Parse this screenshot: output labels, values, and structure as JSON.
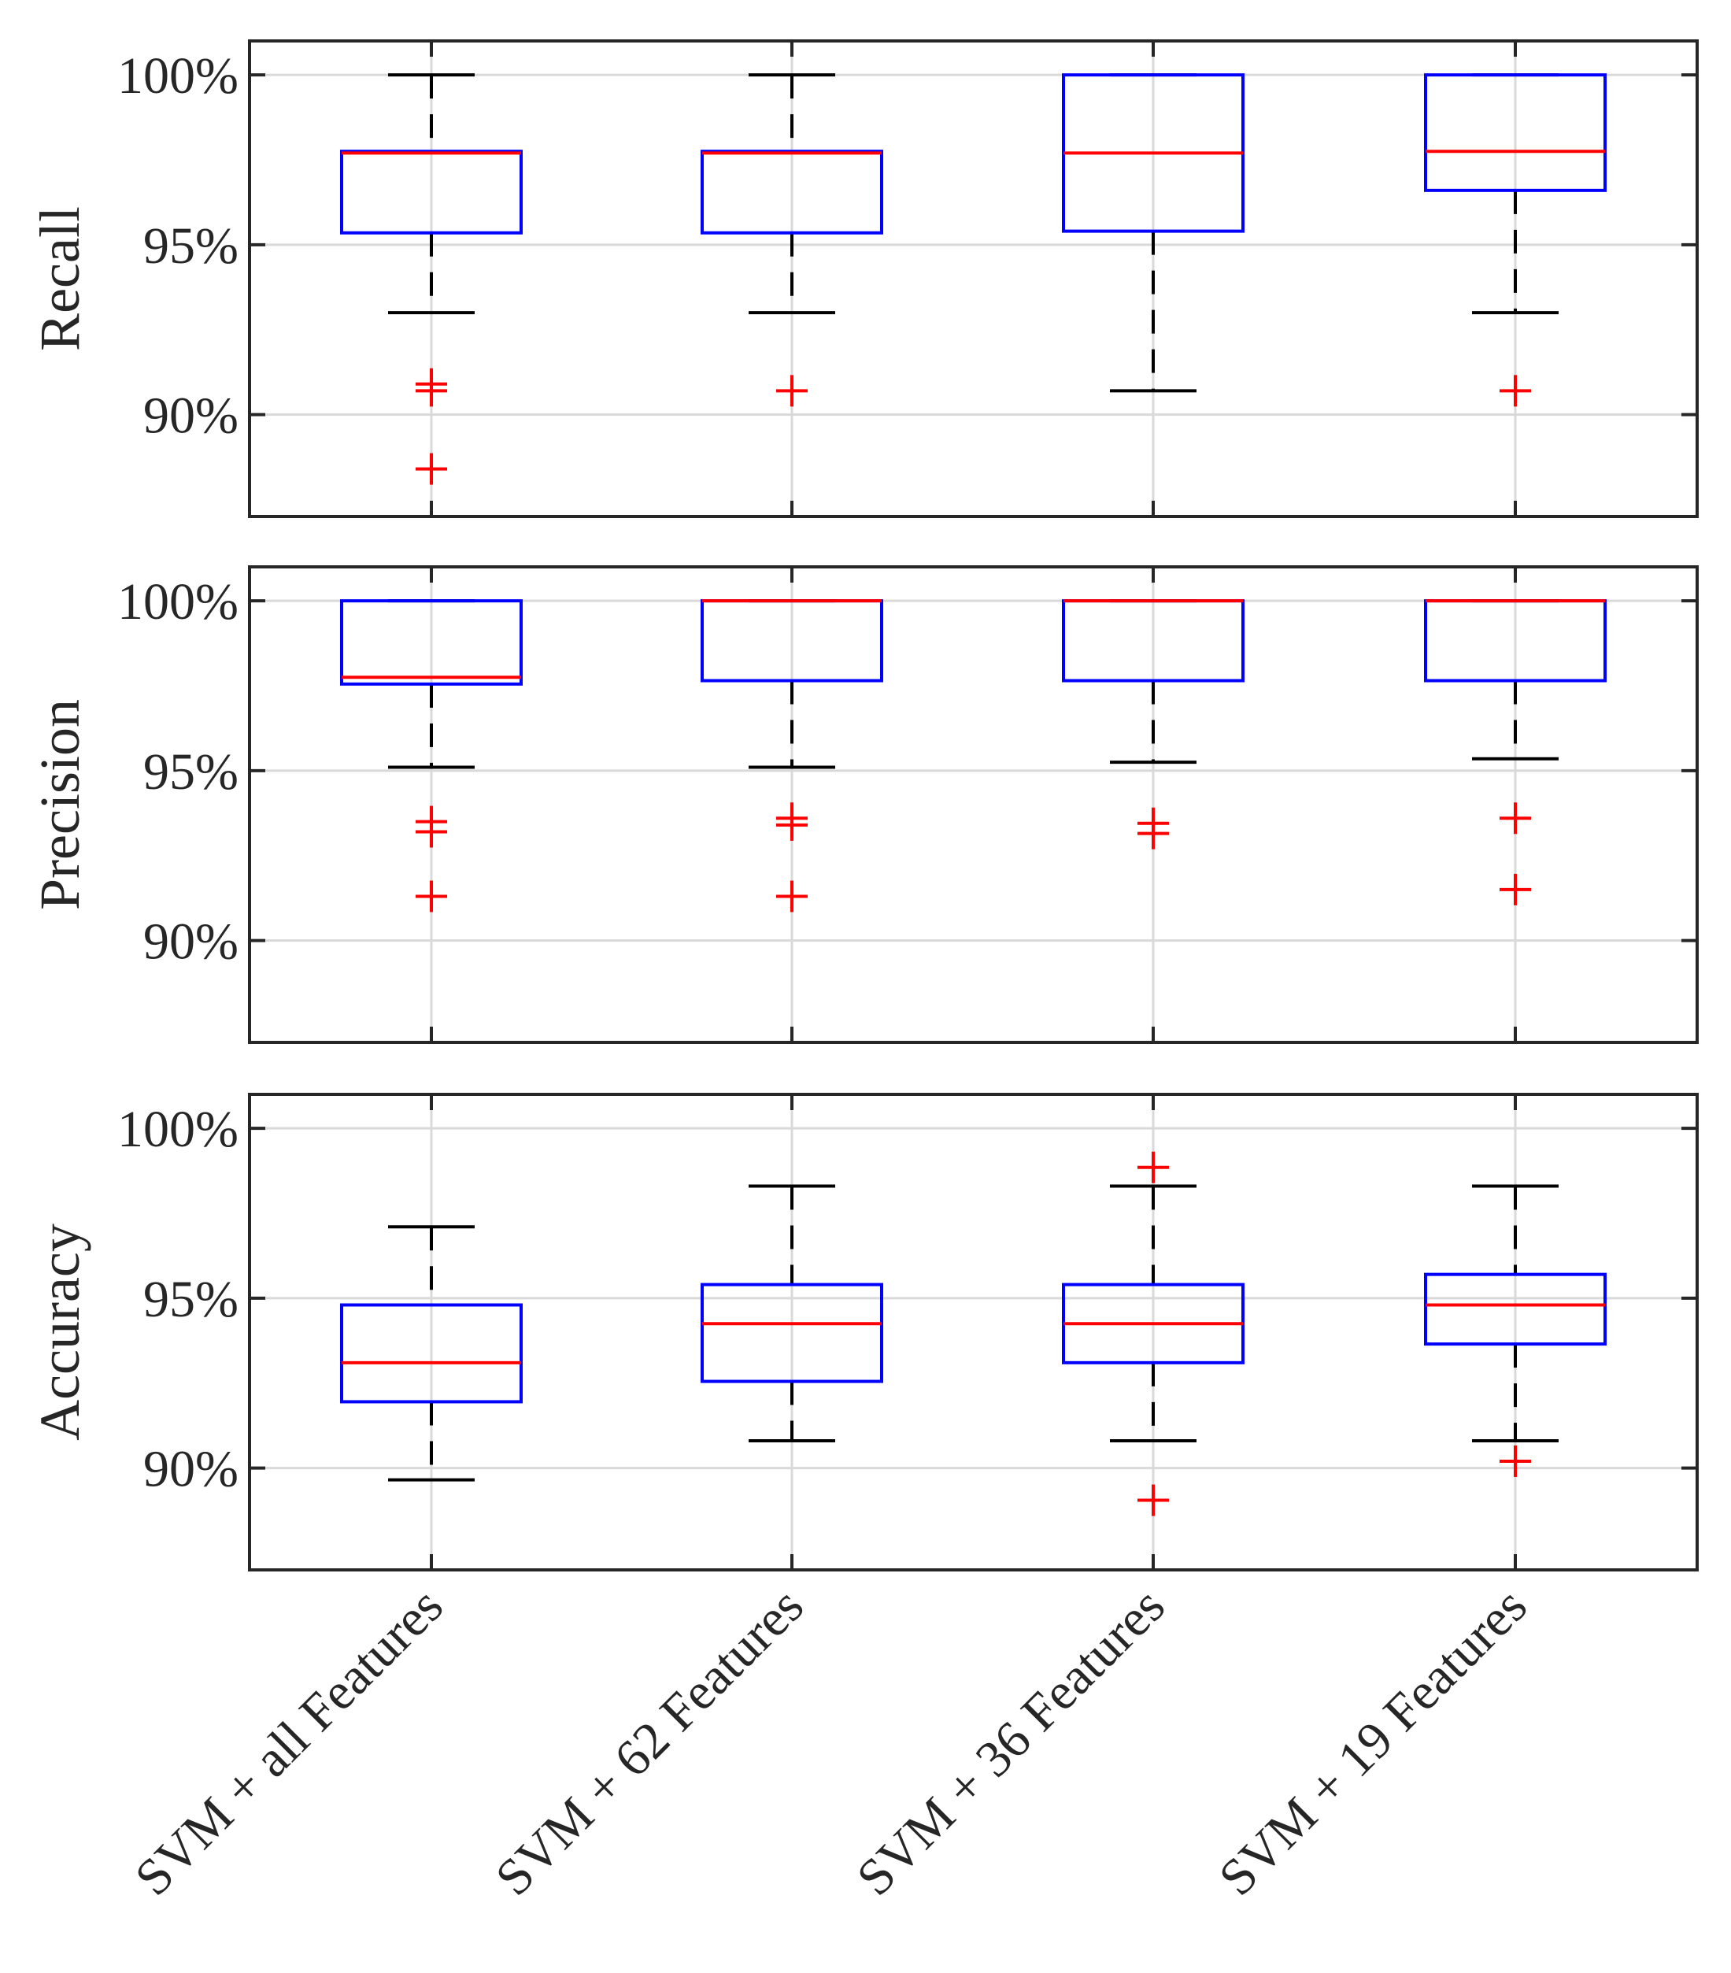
{
  "chart_data": {
    "type": "boxplot",
    "categories": [
      "SVM + all Features",
      "SVM + 62 Features",
      "SVM + 36 Features",
      "SVM + 19 Features"
    ],
    "ylim": [
      87,
      101
    ],
    "yticks": [
      90,
      95,
      100
    ],
    "ytick_labels": [
      "90%",
      "95%",
      "100%"
    ],
    "grid": true,
    "panels": [
      {
        "ylabel": "Recall",
        "boxes": [
          {
            "whisker_low": 93.0,
            "q1": 95.35,
            "median": 97.7,
            "q3": 97.75,
            "whisker_high": 100.0,
            "outliers": [
              90.9,
              90.7,
              88.4
            ]
          },
          {
            "whisker_low": 93.0,
            "q1": 95.35,
            "median": 97.7,
            "q3": 97.75,
            "whisker_high": 100.0,
            "outliers": [
              90.7
            ]
          },
          {
            "whisker_low": 90.7,
            "q1": 95.4,
            "median": 97.7,
            "q3": 100.0,
            "whisker_high": 100.0,
            "outliers": []
          },
          {
            "whisker_low": 93.0,
            "q1": 96.6,
            "median": 97.75,
            "q3": 100.0,
            "whisker_high": 100.0,
            "outliers": [
              90.7
            ]
          }
        ]
      },
      {
        "ylabel": "Precision",
        "boxes": [
          {
            "whisker_low": 95.1,
            "q1": 97.55,
            "median": 97.75,
            "q3": 100.0,
            "whisker_high": 100.0,
            "outliers": [
              93.5,
              93.2,
              91.3
            ]
          },
          {
            "whisker_low": 95.1,
            "q1": 97.65,
            "median": 100.0,
            "q3": 100.0,
            "whisker_high": 100.0,
            "outliers": [
              93.6,
              93.4,
              91.3
            ]
          },
          {
            "whisker_low": 95.25,
            "q1": 97.65,
            "median": 100.0,
            "q3": 100.0,
            "whisker_high": 100.0,
            "outliers": [
              93.45,
              93.15
            ]
          },
          {
            "whisker_low": 95.35,
            "q1": 97.65,
            "median": 100.0,
            "q3": 100.0,
            "whisker_high": 100.0,
            "outliers": [
              93.6,
              91.5
            ]
          }
        ]
      },
      {
        "ylabel": "Accuracy",
        "boxes": [
          {
            "whisker_low": 89.65,
            "q1": 91.95,
            "median": 93.1,
            "q3": 94.8,
            "whisker_high": 97.1,
            "outliers": []
          },
          {
            "whisker_low": 90.8,
            "q1": 92.55,
            "median": 94.25,
            "q3": 95.4,
            "whisker_high": 98.3,
            "outliers": []
          },
          {
            "whisker_low": 90.8,
            "q1": 93.1,
            "median": 94.25,
            "q3": 95.4,
            "whisker_high": 98.3,
            "outliers": [
              98.85,
              89.05
            ]
          },
          {
            "whisker_low": 90.8,
            "q1": 93.65,
            "median": 94.8,
            "q3": 95.7,
            "whisker_high": 98.3,
            "outliers": [
              90.2
            ]
          }
        ]
      }
    ],
    "colors": {
      "box": "#0000ff",
      "median": "#ff0000",
      "outlier": "#ff0000",
      "whisker": "#000000",
      "grid": "#d9d9d9",
      "axis": "#262626"
    }
  }
}
